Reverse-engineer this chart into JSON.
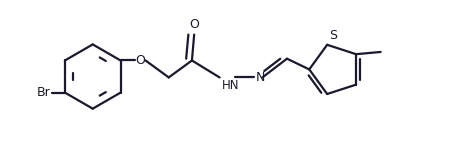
{
  "bg_color": "#ffffff",
  "line_color": "#1a1a2e",
  "line_width": 1.6,
  "font_size": 9,
  "fig_width": 4.71,
  "fig_height": 1.62,
  "dpi": 100,
  "xlim": [
    0,
    10.5
  ],
  "ylim": [
    0,
    3.6
  ]
}
